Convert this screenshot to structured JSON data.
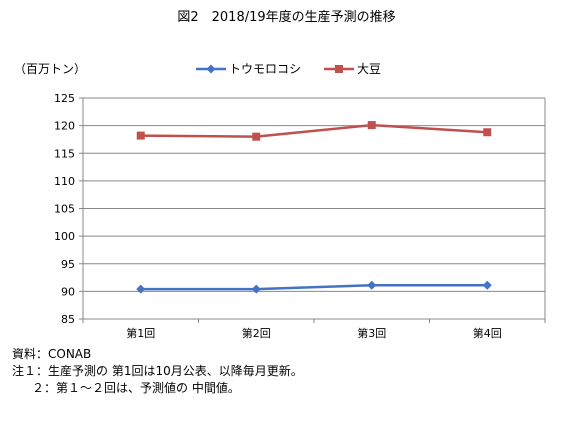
{
  "chart_data": {
    "type": "line",
    "title": "図2　2018/19年度の生産予測の推移",
    "ylabel": "（百万トン）",
    "xlabel": "",
    "categories": [
      "第1回",
      "第2回",
      "第3回",
      "第4回"
    ],
    "ylim": [
      85,
      125
    ],
    "yticks": [
      85,
      90,
      95,
      100,
      105,
      110,
      115,
      120,
      125
    ],
    "grid": true,
    "legend_position": "top",
    "series": [
      {
        "name": "トウモロコシ",
        "values": [
          90.4,
          90.4,
          91.1,
          91.1
        ],
        "color": "#4472C4",
        "marker": "diamond"
      },
      {
        "name": "大豆",
        "values": [
          118.2,
          118.0,
          120.1,
          118.8
        ],
        "color": "#C0504D",
        "marker": "square"
      }
    ]
  },
  "notes": {
    "source": "資料：CONAB",
    "note1": "注１：生産予測の 第1回は10月公表、以降毎月更新。",
    "note2": "２：第１～２回は、予測値の 中間値。"
  }
}
